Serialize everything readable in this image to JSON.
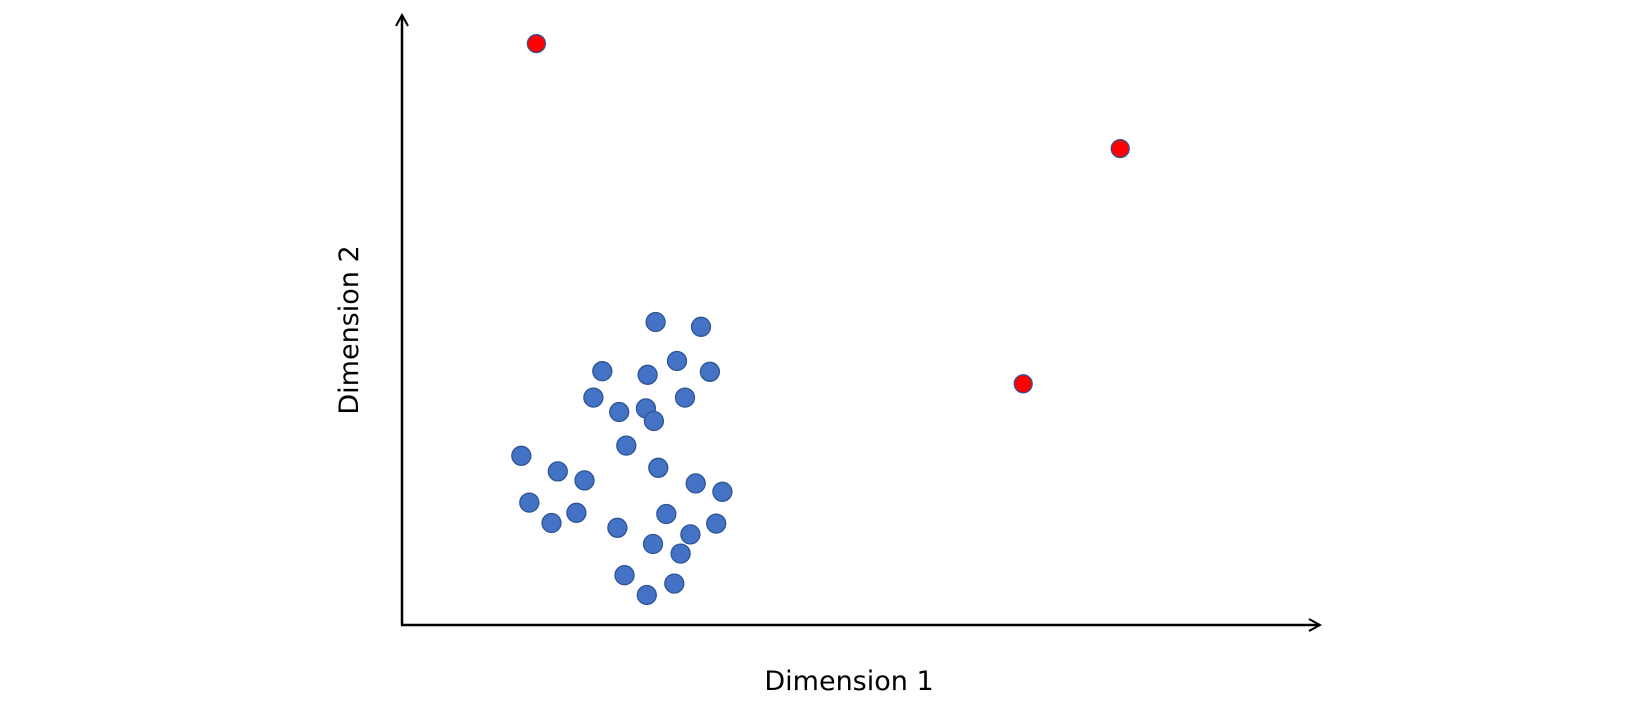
{
  "chart_data": {
    "type": "scatter",
    "title": "",
    "xlabel": "Dimension 1",
    "ylabel": "Dimension 2",
    "xlim": [
      0,
      100
    ],
    "ylim": [
      0,
      100
    ],
    "grid": false,
    "legend": "none",
    "tick_labels": false,
    "series": [
      {
        "color": "#4472C4",
        "edge_color": "#2F5597",
        "points": [
          {
            "x": 28.5,
            "y": 50.5
          },
          {
            "x": 33.6,
            "y": 49.7
          },
          {
            "x": 22.5,
            "y": 42.3
          },
          {
            "x": 27.6,
            "y": 41.7
          },
          {
            "x": 30.9,
            "y": 44.0
          },
          {
            "x": 34.6,
            "y": 42.2
          },
          {
            "x": 21.5,
            "y": 37.9
          },
          {
            "x": 24.4,
            "y": 35.5
          },
          {
            "x": 27.4,
            "y": 36.1
          },
          {
            "x": 31.8,
            "y": 37.9
          },
          {
            "x": 28.3,
            "y": 34.0
          },
          {
            "x": 25.2,
            "y": 29.9
          },
          {
            "x": 13.4,
            "y": 28.2
          },
          {
            "x": 17.5,
            "y": 25.6
          },
          {
            "x": 20.5,
            "y": 24.1
          },
          {
            "x": 28.8,
            "y": 26.2
          },
          {
            "x": 33.0,
            "y": 23.6
          },
          {
            "x": 36.0,
            "y": 22.2
          },
          {
            "x": 14.3,
            "y": 20.4
          },
          {
            "x": 19.6,
            "y": 18.7
          },
          {
            "x": 16.8,
            "y": 17.0
          },
          {
            "x": 24.2,
            "y": 16.2
          },
          {
            "x": 29.7,
            "y": 18.5
          },
          {
            "x": 35.3,
            "y": 16.9
          },
          {
            "x": 32.4,
            "y": 15.1
          },
          {
            "x": 28.2,
            "y": 13.5
          },
          {
            "x": 31.3,
            "y": 11.9
          },
          {
            "x": 25.0,
            "y": 8.3
          },
          {
            "x": 30.6,
            "y": 6.9
          },
          {
            "x": 27.5,
            "y": 5.0
          }
        ]
      },
      {
        "color": "#FF0000",
        "edge_color": "#2F5597",
        "points": [
          {
            "x": 15.1,
            "y": 96.9
          },
          {
            "x": 80.7,
            "y": 79.4
          },
          {
            "x": 69.8,
            "y": 40.2
          }
        ]
      }
    ]
  }
}
